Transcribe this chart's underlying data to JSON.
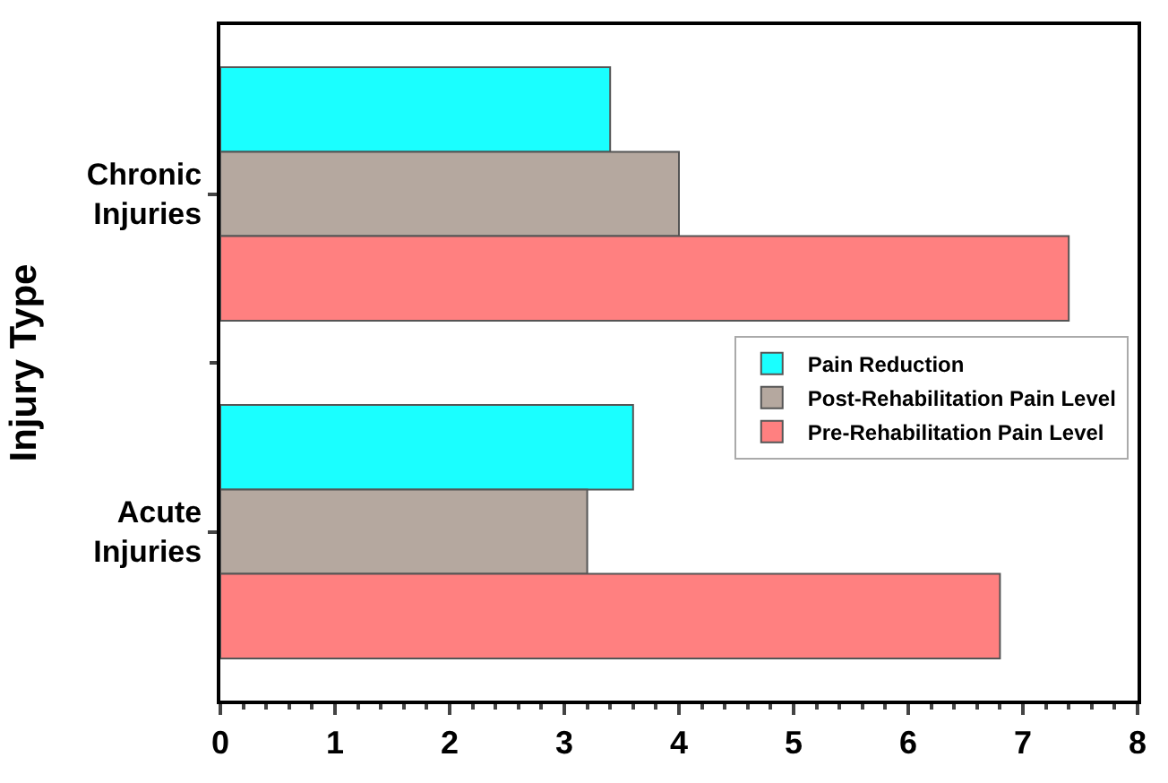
{
  "chart_data": {
    "type": "bar",
    "orientation": "horizontal",
    "ylabel": "Injury Type",
    "categories": [
      "Chronic Injuries",
      "Acute Injuries"
    ],
    "series": [
      {
        "name": "Pain Reduction",
        "color": "#1affff",
        "values": [
          3.4,
          3.6
        ]
      },
      {
        "name": "Post-Rehabilitation Pain Level",
        "color": "#b5a89f",
        "values": [
          4.0,
          3.2
        ]
      },
      {
        "name": "Pre-Rehabilitation Pain Level",
        "color": "#ff8080",
        "values": [
          7.4,
          6.8
        ]
      }
    ],
    "xlim": [
      0,
      8
    ],
    "xticks": [
      0,
      1,
      2,
      3,
      4,
      5,
      6,
      7,
      8
    ],
    "legend": "right"
  }
}
